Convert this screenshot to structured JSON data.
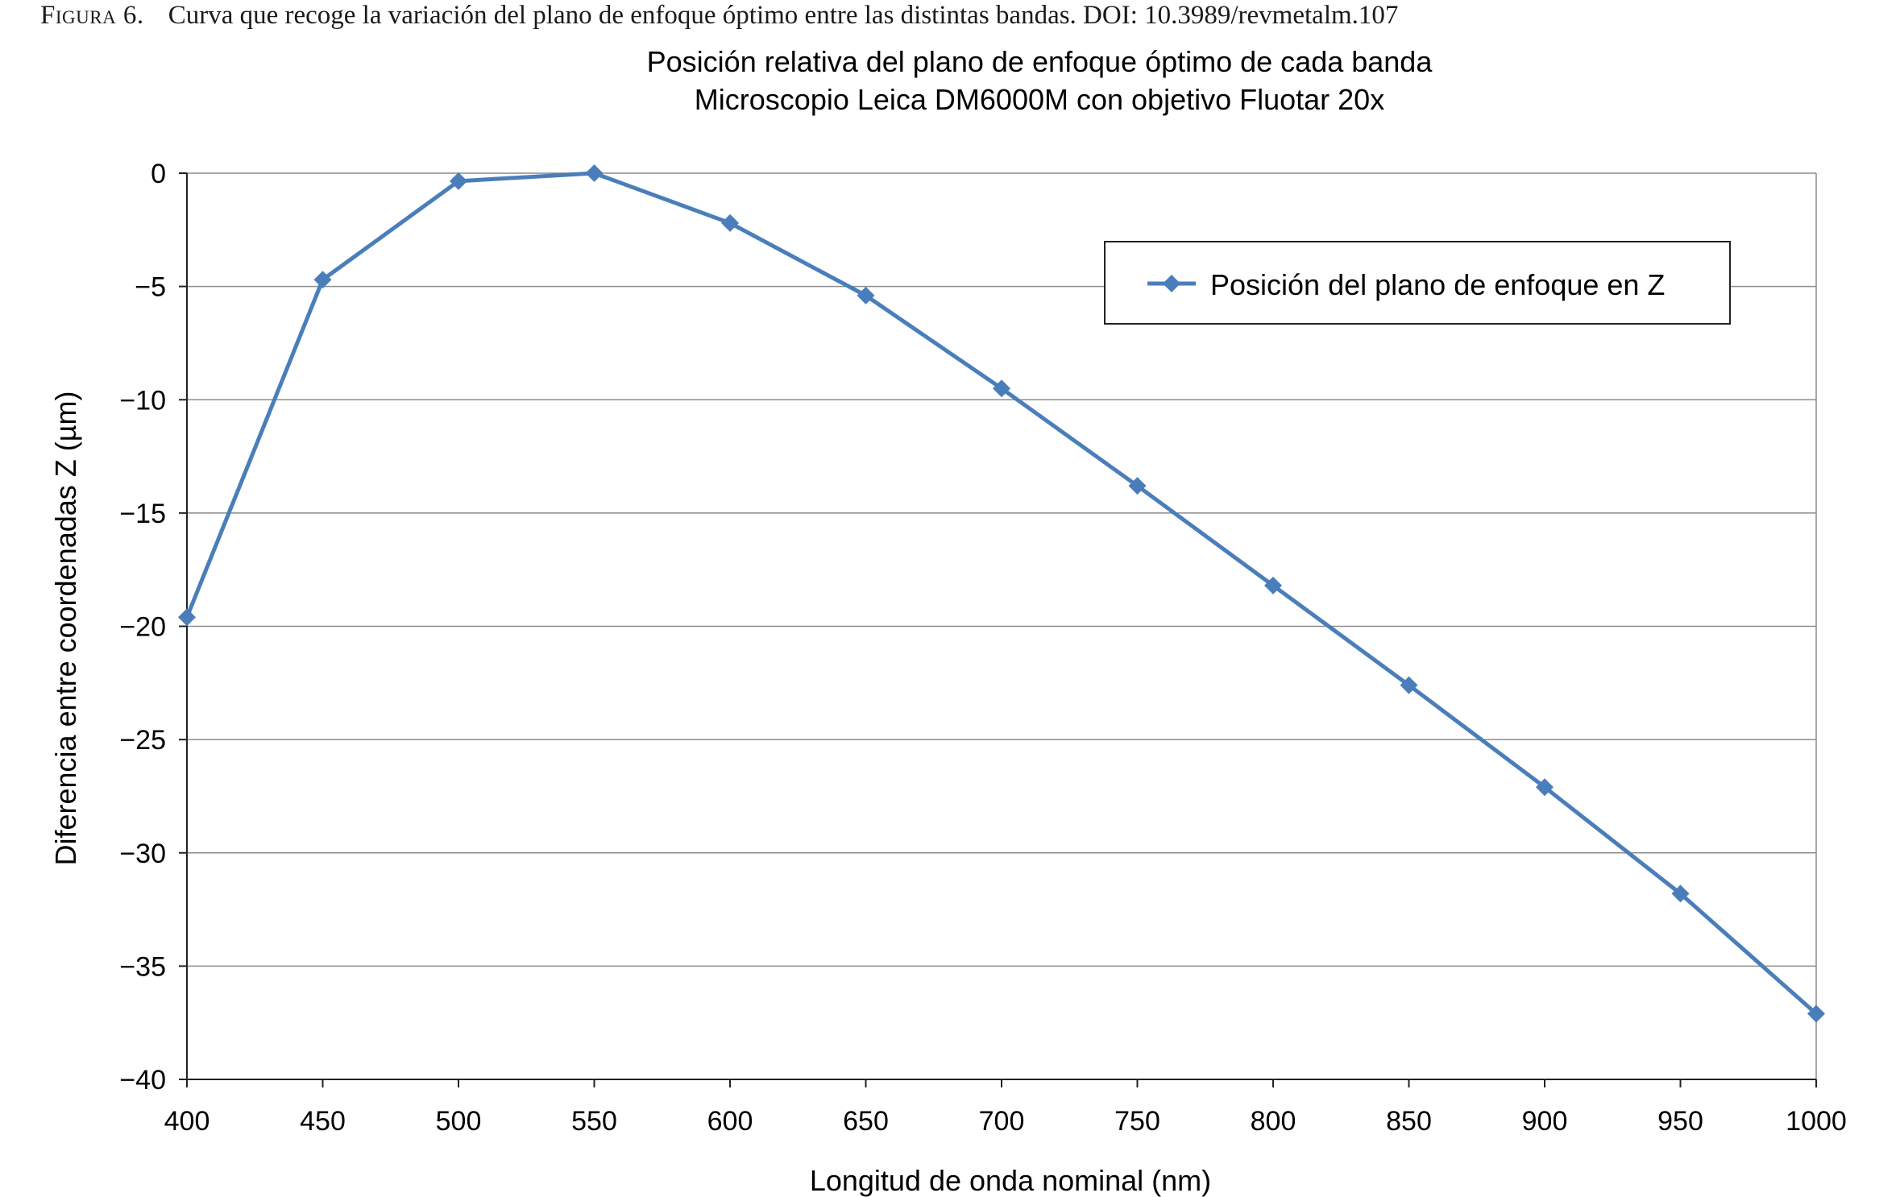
{
  "caption": {
    "label": "Figura 6.",
    "text": "Curva que recoge la variación del plano de enfoque óptimo entre las distintas bandas. DOI: 10.3989/revmetalm.107"
  },
  "chart_data": {
    "type": "line",
    "title": "Posición relativa del plano de enfoque óptimo de cada banda",
    "subtitle": "Microscopio Leica DM6000M con objetivo Fluotar 20x",
    "xlabel": "Longitud de onda nominal (nm)",
    "ylabel": "Diferencia entre coordenadas Z (µm)",
    "xlim": [
      400,
      1000
    ],
    "ylim": [
      -40,
      0
    ],
    "x_ticks": [
      400,
      450,
      500,
      550,
      600,
      650,
      700,
      750,
      800,
      850,
      900,
      950,
      1000
    ],
    "x_tick_labels": [
      "400",
      "450",
      "500",
      "550",
      "600",
      "650",
      "700",
      "750",
      "800",
      "850",
      "900",
      "950",
      "1000"
    ],
    "y_ticks": [
      0,
      -5,
      -10,
      -15,
      -20,
      -25,
      -30,
      -35,
      -40
    ],
    "y_tick_labels": [
      "0",
      "−5",
      "−10",
      "−15",
      "−20",
      "−25",
      "−30",
      "−35",
      "−40"
    ],
    "grid": "horizontal",
    "legend_position": "top-right",
    "series": [
      {
        "name": "Posición del plano de enfoque en Z",
        "color": "#4a7ebb",
        "marker": "diamond",
        "x": [
          400,
          450,
          500,
          550,
          600,
          650,
          700,
          750,
          800,
          850,
          900,
          950,
          1000
        ],
        "y": [
          -19.6,
          -4.7,
          -0.35,
          0,
          -2.2,
          -5.4,
          -9.5,
          -13.8,
          -18.2,
          -22.6,
          -27.1,
          -31.8,
          -37.1
        ]
      }
    ]
  }
}
